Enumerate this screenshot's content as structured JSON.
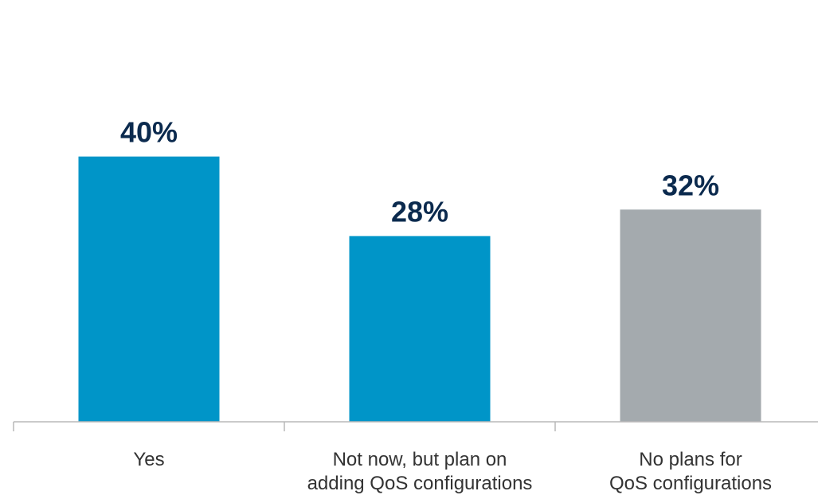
{
  "chart_data": {
    "type": "bar",
    "categories": [
      [
        "Yes"
      ],
      [
        "Not now, but plan on",
        "adding QoS configurations"
      ],
      [
        "No plans for",
        "QoS configurations"
      ]
    ],
    "values": [
      40,
      28,
      32
    ],
    "value_labels": [
      "40%",
      "28%",
      "32%"
    ],
    "bar_colors": [
      "#0095c8",
      "#0095c8",
      "#a4aaae"
    ],
    "label_color": "#0b2a4e",
    "category_label_color": "#333333",
    "axis_color": "#b8b8b8",
    "ylim": [
      0,
      60
    ],
    "grid": false,
    "legend": "none",
    "title": "",
    "xlabel": "",
    "ylabel": ""
  }
}
